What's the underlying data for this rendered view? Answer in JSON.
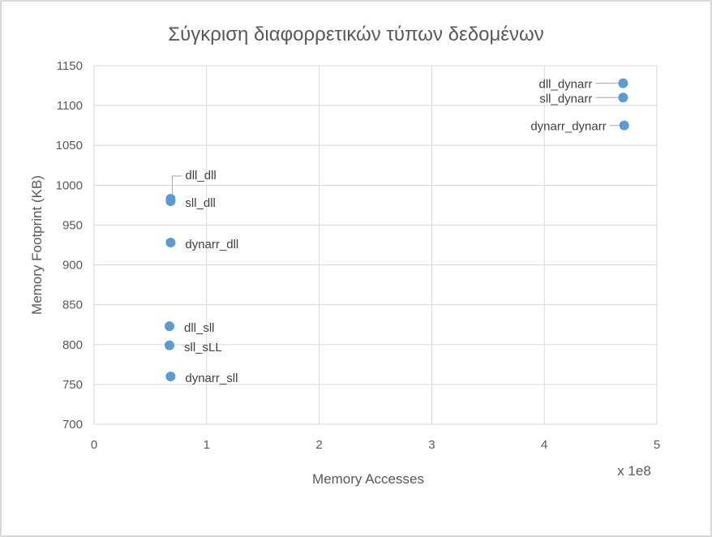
{
  "chart_data": {
    "type": "scatter",
    "title": "Σύγκριση διαφορρετικών τύπων δεδομένων",
    "xlabel": "Memory Accesses",
    "ylabel": "Memory Footprint (KB)",
    "x_multiplier_label": "x 1e8",
    "xlim": [
      0,
      5
    ],
    "ylim": [
      700,
      1150
    ],
    "x_ticks": [
      "0",
      "1",
      "2",
      "3",
      "4",
      "5"
    ],
    "y_ticks": [
      "700",
      "750",
      "800",
      "850",
      "900",
      "950",
      "1000",
      "1050",
      "1100",
      "1150"
    ],
    "grid": true,
    "legend": "none",
    "marker_color": "#5b9bd5",
    "points": [
      {
        "label": "dll_dll",
        "x": 0.68,
        "y": 983
      },
      {
        "label": "sll_dll",
        "x": 0.68,
        "y": 980
      },
      {
        "label": "dynarr_dll",
        "x": 0.68,
        "y": 928
      },
      {
        "label": "dll_sll",
        "x": 0.67,
        "y": 823
      },
      {
        "label": "sll_sLL",
        "x": 0.67,
        "y": 799
      },
      {
        "label": "dynarr_sll",
        "x": 0.68,
        "y": 760
      },
      {
        "label": "dll_dynarr",
        "x": 4.7,
        "y": 1128
      },
      {
        "label": "sll_dynarr",
        "x": 4.7,
        "y": 1110
      },
      {
        "label": "dynarr_dynarr",
        "x": 4.71,
        "y": 1075
      }
    ]
  }
}
